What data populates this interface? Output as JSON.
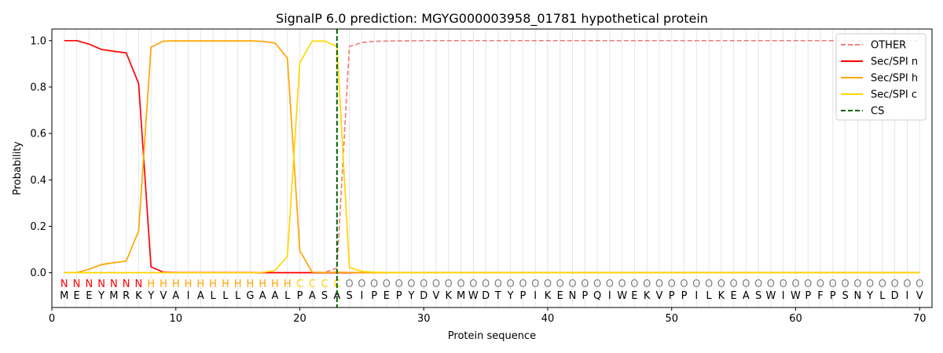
{
  "chart_data": {
    "type": "line",
    "title": "SignalP 6.0 prediction: MGYG000003958_01781 hypothetical protein",
    "xlabel": "Protein sequence",
    "ylabel": "Probability",
    "xlim": [
      0,
      71
    ],
    "ylim": [
      -0.15,
      1.05
    ],
    "xticks": [
      0,
      10,
      20,
      30,
      40,
      50,
      60,
      70
    ],
    "yticks": [
      0.0,
      0.2,
      0.4,
      0.6,
      0.8,
      1.0
    ],
    "grid": "vertical lines at each residue",
    "legend_position": "top-right",
    "sequence": [
      "M",
      "E",
      "E",
      "Y",
      "M",
      "R",
      "K",
      "Y",
      "V",
      "A",
      "I",
      "A",
      "L",
      "L",
      "L",
      "G",
      "A",
      "A",
      "L",
      "P",
      "A",
      "S",
      "A",
      "S",
      "I",
      "P",
      "E",
      "P",
      "Y",
      "D",
      "V",
      "K",
      "M",
      "W",
      "D",
      "T",
      "Y",
      "P",
      "I",
      "K",
      "E",
      "N",
      "P",
      "Q",
      "I",
      "W",
      "E",
      "K",
      "V",
      "P",
      "P",
      "I",
      "L",
      "K",
      "E",
      "A",
      "S",
      "W",
      "I",
      "W",
      "P",
      "F",
      "P",
      "S",
      "N",
      "Y",
      "L",
      "D",
      "I",
      "V"
    ],
    "labels": [
      "N",
      "N",
      "N",
      "N",
      "N",
      "N",
      "N",
      "H",
      "H",
      "H",
      "H",
      "H",
      "H",
      "H",
      "H",
      "H",
      "H",
      "H",
      "H",
      "C",
      "C",
      "C",
      "C",
      "O",
      "O",
      "O",
      "O",
      "O",
      "O",
      "O",
      "O",
      "O",
      "O",
      "O",
      "O",
      "O",
      "O",
      "O",
      "O",
      "O",
      "O",
      "O",
      "O",
      "O",
      "O",
      "O",
      "O",
      "O",
      "O",
      "O",
      "O",
      "O",
      "O",
      "O",
      "O",
      "O",
      "O",
      "O",
      "O",
      "O",
      "O",
      "O",
      "O",
      "O",
      "O",
      "O",
      "O",
      "O",
      "O",
      "O"
    ],
    "label_colors": {
      "N": "#ff0000",
      "H": "#ffa500",
      "C": "#ffd700",
      "O": "#808080"
    },
    "series": [
      {
        "name": "OTHER",
        "color": "#f08080",
        "dash": true,
        "values": [
          0,
          0,
          0,
          0,
          0,
          0,
          0,
          0,
          0,
          0,
          0,
          0,
          0,
          0,
          0,
          0,
          0,
          0,
          0,
          0,
          0,
          0.001,
          0.02,
          0.975,
          0.992,
          0.997,
          0.998,
          0.999,
          0.999,
          1,
          1,
          1,
          1,
          1,
          1,
          1,
          1,
          1,
          1,
          1,
          1,
          1,
          1,
          1,
          1,
          1,
          1,
          1,
          1,
          1,
          1,
          1,
          1,
          1,
          1,
          1,
          1,
          1,
          1,
          1,
          1,
          1,
          1,
          1,
          1,
          1,
          1,
          1,
          1,
          1
        ]
      },
      {
        "name": "Sec/SPI n",
        "color": "#ff0000",
        "dash": false,
        "values": [
          1.0,
          1.0,
          0.985,
          0.962,
          0.954,
          0.947,
          0.815,
          0.025,
          0.002,
          0.001,
          0.001,
          0.001,
          0.001,
          0.001,
          0.001,
          0.001,
          0,
          0,
          0,
          0,
          0,
          0,
          0,
          0,
          0,
          0,
          0,
          0,
          0,
          0,
          0,
          0,
          0,
          0,
          0,
          0,
          0,
          0,
          0,
          0,
          0,
          0,
          0,
          0,
          0,
          0,
          0,
          0,
          0,
          0,
          0,
          0,
          0,
          0,
          0,
          0,
          0,
          0,
          0,
          0,
          0,
          0,
          0,
          0,
          0,
          0,
          0,
          0,
          0,
          0
        ]
      },
      {
        "name": "Sec/SPI h",
        "color": "#ffa500",
        "dash": false,
        "values": [
          0,
          0,
          0.015,
          0.035,
          0.043,
          0.05,
          0.18,
          0.972,
          0.998,
          0.999,
          0.999,
          0.999,
          0.999,
          0.999,
          0.999,
          0.999,
          0.997,
          0.99,
          0.925,
          0.095,
          0.002,
          0.001,
          0.002,
          0.001,
          0,
          0,
          0,
          0,
          0,
          0,
          0,
          0,
          0,
          0,
          0,
          0,
          0,
          0,
          0,
          0,
          0,
          0,
          0,
          0,
          0,
          0,
          0,
          0,
          0,
          0,
          0,
          0,
          0,
          0,
          0,
          0,
          0,
          0,
          0,
          0,
          0,
          0,
          0,
          0,
          0,
          0,
          0,
          0,
          0,
          0
        ]
      },
      {
        "name": "Sec/SPI c",
        "color": "#ffd700",
        "dash": false,
        "values": [
          0,
          0,
          0,
          0,
          0,
          0,
          0,
          0,
          0,
          0,
          0,
          0,
          0,
          0,
          0,
          0,
          0.001,
          0.01,
          0.07,
          0.905,
          0.998,
          0.998,
          0.975,
          0.022,
          0.006,
          0.002,
          0.001,
          0,
          0,
          0,
          0,
          0,
          0,
          0,
          0,
          0,
          0,
          0,
          0,
          0,
          0,
          0,
          0,
          0,
          0,
          0,
          0,
          0,
          0,
          0,
          0,
          0,
          0,
          0,
          0,
          0,
          0,
          0,
          0,
          0,
          0,
          0,
          0,
          0,
          0,
          0,
          0,
          0,
          0,
          0
        ]
      }
    ],
    "cs": {
      "name": "CS",
      "color": "#006400",
      "position": 23
    }
  }
}
